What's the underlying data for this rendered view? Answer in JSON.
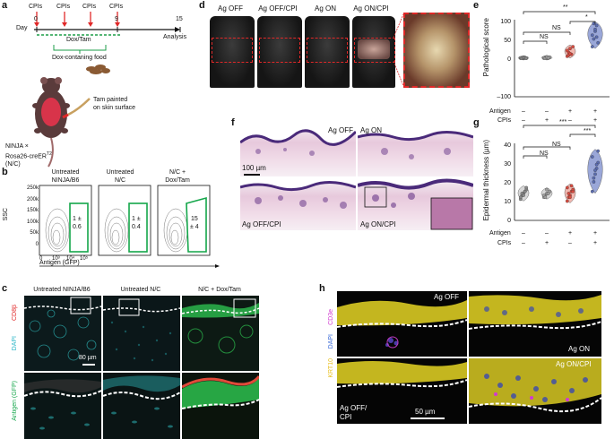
{
  "panels": {
    "a": "a",
    "b": "b",
    "c": "c",
    "d": "d",
    "e": "e",
    "f": "f",
    "g": "g",
    "h": "h"
  },
  "a": {
    "cpis": [
      "CPIs",
      "CPIs",
      "CPIs",
      "CPIs"
    ],
    "day_label": "Day",
    "ticks": [
      "0",
      "9",
      "15"
    ],
    "analysis": "Analysis",
    "dox_tam": "Dox/Tam",
    "dox_food": "Dox-contaning food",
    "mouse_line1": "NINJA ×",
    "mouse_line2": "Rosa26-creER",
    "mouse_sup": "T2",
    "mouse_line3": "(N/C)",
    "tam_line1": "Tam painted",
    "tam_line2": "on skin surface"
  },
  "b": {
    "titles": [
      [
        "Untreated",
        "NINJA/B6"
      ],
      [
        "Untreated",
        "N/C"
      ],
      [
        "N/C +",
        "Dox/Tam"
      ]
    ],
    "gates": [
      [
        "1 ±",
        "0.6"
      ],
      [
        "1 ±",
        "0.4"
      ],
      [
        "15",
        "± 4"
      ]
    ],
    "y_ticks": [
      "250k",
      "200k",
      "150k",
      "100k",
      "50k",
      "0"
    ],
    "x_ticks": [
      "0",
      "10³",
      "10⁴",
      "10⁵"
    ],
    "ylabel": "SSC",
    "xlabel": "Antigen (GFP)"
  },
  "c": {
    "titles": [
      "Untreated NINJA/B6",
      "Untreated N/C",
      "N/C + Dox/Tam"
    ],
    "ch1": "CD8β",
    "ch2": "DAPI",
    "ch3": "Antigen (GFP)",
    "scale": "80 µm"
  },
  "d": {
    "titles": [
      "Ag OFF",
      "Ag OFF/CPI",
      "Ag ON",
      "Ag ON/CPI"
    ]
  },
  "e": {
    "ylabel": "Pathological score",
    "y_ticks": [
      "100",
      "50",
      "0",
      "–100"
    ],
    "sig": [
      "**",
      "*",
      "NS",
      "NS"
    ],
    "row_labels": [
      "Antigen",
      "CPIs"
    ],
    "antigen": [
      "–",
      "–",
      "+",
      "+"
    ],
    "cpis": [
      "–",
      "+",
      "–",
      "+"
    ],
    "groups": [
      {
        "values": [
          0,
          1,
          0,
          2,
          0,
          1,
          0,
          2,
          1,
          0
        ],
        "color": "#8a8a8a"
      },
      {
        "values": [
          0,
          2,
          1,
          0,
          3,
          1,
          0,
          2,
          1
        ],
        "color": "#a0a0a0"
      },
      {
        "values": [
          5,
          15,
          25,
          10,
          30,
          20,
          8,
          12
        ],
        "color": "#d94b3f"
      },
      {
        "values": [
          30,
          50,
          70,
          85,
          40,
          60,
          90,
          75,
          55
        ],
        "color": "#5a6cb0"
      }
    ]
  },
  "f": {
    "labels": [
      "Ag OFF",
      "Ag ON",
      "Ag OFF/CPI",
      "Ag ON/CPI"
    ],
    "scale": "100 µm"
  },
  "g": {
    "ylabel": "Epidermal thickness (µm)",
    "y_ticks": [
      "40",
      "30",
      "20",
      "10",
      "0"
    ],
    "sig": [
      "***",
      "***",
      "NS",
      "NS"
    ],
    "row_labels": [
      "Antigen",
      "CPIs"
    ],
    "antigen": [
      "–",
      "–",
      "+",
      "+"
    ],
    "cpis": [
      "–",
      "+",
      "–",
      "+"
    ],
    "groups": [
      {
        "values": [
          11,
          13,
          14,
          15,
          16,
          12,
          14,
          13,
          15,
          17
        ],
        "color": "#8a8a8a"
      },
      {
        "values": [
          12,
          13,
          14,
          14,
          15,
          13,
          12,
          16,
          14
        ],
        "color": "#a0a0a0"
      },
      {
        "values": [
          10,
          12,
          13,
          15,
          16,
          17,
          14,
          12,
          18,
          15
        ],
        "color": "#d94b3f"
      },
      {
        "values": [
          15,
          20,
          24,
          27,
          30,
          33,
          22,
          26,
          29,
          36
        ],
        "color": "#5a6cb0"
      }
    ]
  },
  "h": {
    "labels": [
      "Ag OFF",
      "Ag ON",
      "Ag ON/CPI",
      "Ag OFF/",
      "CPI"
    ],
    "ch1": "CD3e",
    "ch2": "DAPI",
    "ch3": "KRT10",
    "scale": "50 µm"
  },
  "colors": {
    "gate": "#14a64a",
    "red": "#e02828",
    "dash_green": "#1e9e48",
    "violin_blue": "#9aa7d8"
  }
}
